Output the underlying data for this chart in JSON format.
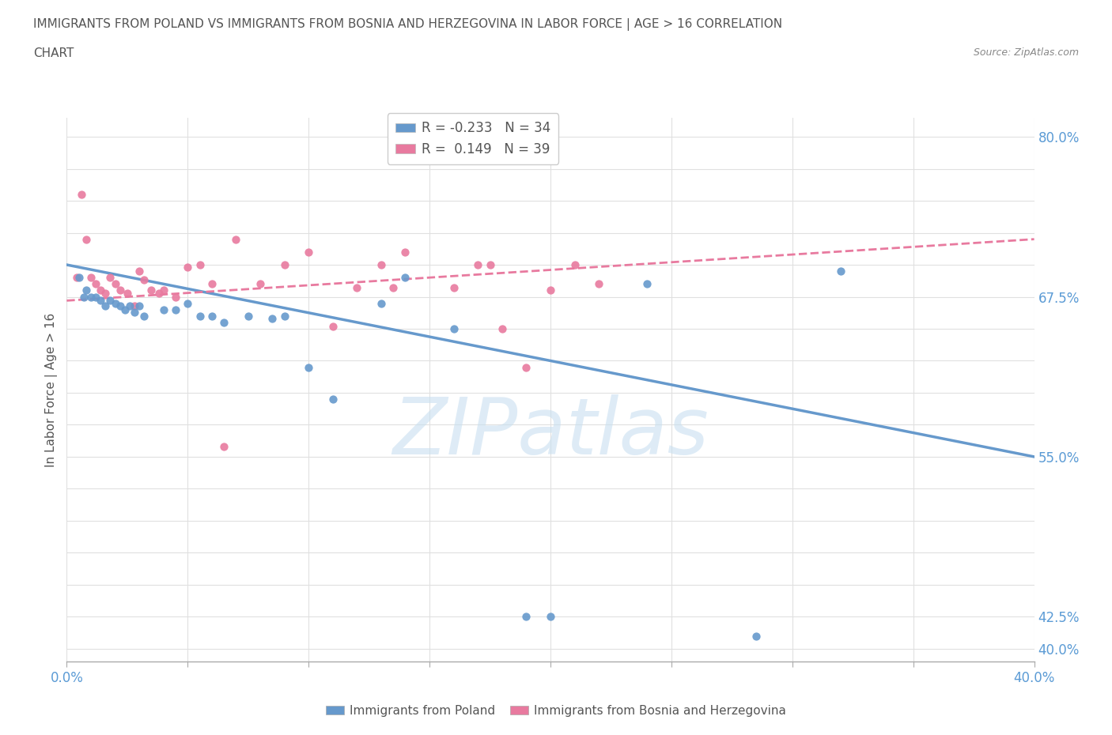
{
  "title_line1": "IMMIGRANTS FROM POLAND VS IMMIGRANTS FROM BOSNIA AND HERZEGOVINA IN LABOR FORCE | AGE > 16 CORRELATION",
  "title_line2": "CHART",
  "source": "Source: ZipAtlas.com",
  "ylabel": "In Labor Force | Age > 16",
  "xlim": [
    0.0,
    0.4
  ],
  "ylim": [
    0.39,
    0.815
  ],
  "ytick_positions": [
    0.4,
    0.425,
    0.45,
    0.475,
    0.5,
    0.525,
    0.55,
    0.575,
    0.6,
    0.625,
    0.65,
    0.675,
    0.7,
    0.725,
    0.75,
    0.775,
    0.8
  ],
  "ytick_labels_show": [
    0.4,
    0.425,
    0.55,
    0.675,
    0.8
  ],
  "xtick_positions": [
    0.0,
    0.05,
    0.1,
    0.15,
    0.2,
    0.25,
    0.3,
    0.35,
    0.4
  ],
  "xtick_labels_show": [
    0.0,
    0.4
  ],
  "poland_color": "#6699cc",
  "bosnia_color": "#e87a9f",
  "poland_R": -0.233,
  "poland_N": 34,
  "bosnia_R": 0.149,
  "bosnia_N": 39,
  "poland_x": [
    0.005,
    0.007,
    0.008,
    0.01,
    0.012,
    0.014,
    0.016,
    0.018,
    0.02,
    0.022,
    0.024,
    0.026,
    0.028,
    0.03,
    0.032,
    0.04,
    0.045,
    0.05,
    0.055,
    0.06,
    0.065,
    0.075,
    0.085,
    0.09,
    0.1,
    0.11,
    0.13,
    0.14,
    0.16,
    0.19,
    0.2,
    0.24,
    0.285,
    0.32
  ],
  "poland_y": [
    0.69,
    0.675,
    0.68,
    0.675,
    0.675,
    0.672,
    0.668,
    0.672,
    0.67,
    0.668,
    0.665,
    0.668,
    0.663,
    0.668,
    0.66,
    0.665,
    0.665,
    0.67,
    0.66,
    0.66,
    0.655,
    0.66,
    0.658,
    0.66,
    0.62,
    0.595,
    0.67,
    0.69,
    0.65,
    0.425,
    0.425,
    0.685,
    0.41,
    0.695
  ],
  "bosnia_x": [
    0.004,
    0.006,
    0.008,
    0.01,
    0.012,
    0.014,
    0.016,
    0.018,
    0.02,
    0.022,
    0.025,
    0.028,
    0.03,
    0.032,
    0.035,
    0.038,
    0.04,
    0.045,
    0.05,
    0.055,
    0.06,
    0.065,
    0.07,
    0.08,
    0.09,
    0.1,
    0.11,
    0.12,
    0.13,
    0.135,
    0.14,
    0.16,
    0.17,
    0.175,
    0.18,
    0.19,
    0.2,
    0.21,
    0.22
  ],
  "bosnia_y": [
    0.69,
    0.755,
    0.72,
    0.69,
    0.685,
    0.68,
    0.678,
    0.69,
    0.685,
    0.68,
    0.678,
    0.668,
    0.695,
    0.688,
    0.68,
    0.678,
    0.68,
    0.675,
    0.698,
    0.7,
    0.685,
    0.558,
    0.72,
    0.685,
    0.7,
    0.71,
    0.652,
    0.682,
    0.7,
    0.682,
    0.71,
    0.682,
    0.7,
    0.7,
    0.65,
    0.62,
    0.68,
    0.7,
    0.685
  ],
  "poland_line_x": [
    0.0,
    0.4
  ],
  "poland_line_y": [
    0.7,
    0.55
  ],
  "bosnia_line_x": [
    0.0,
    0.4
  ],
  "bosnia_line_y": [
    0.672,
    0.72
  ],
  "watermark_text": "ZIPatlas",
  "watermark_color": "#c8dff0",
  "bg_color": "#ffffff",
  "grid_color": "#e0e0e0",
  "tick_color": "#5b9bd5",
  "ylabel_color": "#555555",
  "title_color": "#555555",
  "source_color": "#888888"
}
